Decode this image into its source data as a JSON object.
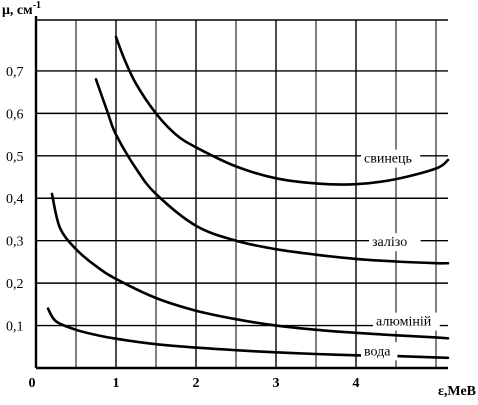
{
  "chart_data": {
    "type": "line",
    "xlabel": "ε,МеВ",
    "ylabel": "μ, см",
    "ylabel_sup": "-1",
    "xlim": [
      0,
      5.15
    ],
    "ylim": [
      0,
      0.82
    ],
    "x_ticks": [
      {
        "value": 0,
        "label": "0"
      },
      {
        "value": 1,
        "label": "1"
      },
      {
        "value": 2,
        "label": "2"
      },
      {
        "value": 3,
        "label": "3"
      },
      {
        "value": 4,
        "label": "4"
      }
    ],
    "x_minor_grid": [
      0.5,
      1.5,
      2.5,
      3.5,
      4.5,
      5.0
    ],
    "y_ticks": [
      {
        "value": 0.1,
        "label": "0,1"
      },
      {
        "value": 0.2,
        "label": "0,2"
      },
      {
        "value": 0.3,
        "label": "0,3"
      },
      {
        "value": 0.4,
        "label": "0,4"
      },
      {
        "value": 0.5,
        "label": "0,5"
      },
      {
        "value": 0.6,
        "label": "0,6"
      },
      {
        "value": 0.7,
        "label": "0,7"
      }
    ],
    "grid": true,
    "series": [
      {
        "name": "свинець",
        "label_at": {
          "x": 4.1,
          "y": 0.484
        },
        "x": [
          1.0,
          1.1,
          1.25,
          1.5,
          1.75,
          2.0,
          2.5,
          3.0,
          3.5,
          4.0,
          4.5,
          5.0,
          5.15
        ],
        "y": [
          0.78,
          0.73,
          0.67,
          0.6,
          0.55,
          0.52,
          0.475,
          0.447,
          0.435,
          0.433,
          0.445,
          0.47,
          0.49
        ]
      },
      {
        "name": "залізо",
        "label_at": {
          "x": 4.2,
          "y": 0.287
        },
        "x": [
          0.75,
          0.9,
          1.0,
          1.25,
          1.5,
          2.0,
          2.5,
          3.0,
          3.5,
          4.0,
          4.5,
          5.0,
          5.15
        ],
        "y": [
          0.68,
          0.6,
          0.55,
          0.47,
          0.41,
          0.335,
          0.3,
          0.28,
          0.267,
          0.257,
          0.251,
          0.247,
          0.247
        ]
      },
      {
        "name": "алюміній",
        "label_at": {
          "x": 4.25,
          "y": 0.1
        },
        "x": [
          0.2,
          0.3,
          0.5,
          0.75,
          1.0,
          1.5,
          2.0,
          2.5,
          3.0,
          3.5,
          4.0,
          4.5,
          5.0,
          5.15
        ],
        "y": [
          0.41,
          0.33,
          0.28,
          0.24,
          0.21,
          0.165,
          0.135,
          0.115,
          0.1,
          0.09,
          0.083,
          0.077,
          0.072,
          0.07
        ]
      },
      {
        "name": "вода",
        "label_at": {
          "x": 4.1,
          "y": 0.03
        },
        "x": [
          0.15,
          0.25,
          0.5,
          0.75,
          1.0,
          1.5,
          2.0,
          2.5,
          3.0,
          3.5,
          4.0,
          4.5,
          5.0,
          5.15
        ],
        "y": [
          0.14,
          0.11,
          0.09,
          0.078,
          0.069,
          0.056,
          0.048,
          0.042,
          0.037,
          0.033,
          0.03,
          0.028,
          0.025,
          0.024
        ]
      }
    ]
  }
}
